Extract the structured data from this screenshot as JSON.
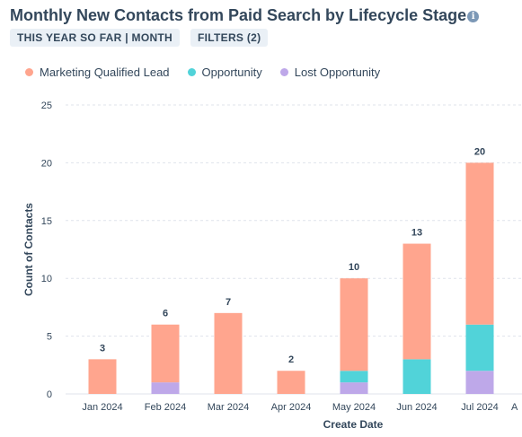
{
  "header": {
    "title": "Monthly New Contacts from Paid Search by Lifecycle Stage",
    "info_icon": "info-icon",
    "chips": [
      "THIS YEAR SO FAR | MONTH",
      "FILTERS (2)"
    ]
  },
  "colors": {
    "mql": "#ffa58e",
    "opportunity": "#51d3d9",
    "lost": "#bea8e9",
    "grid": "#dfe3eb",
    "text": "#33475b"
  },
  "chart_data": {
    "type": "bar",
    "stacked": true,
    "title": "Monthly New Contacts from Paid Search by Lifecycle Stage",
    "xlabel": "Create Date",
    "ylabel": "Count of Contacts",
    "ylim": [
      0,
      25
    ],
    "yticks": [
      0,
      5,
      10,
      15,
      20,
      25
    ],
    "grid": true,
    "legend_position": "top-left",
    "categories": [
      "Jan 2024",
      "Feb 2024",
      "Mar 2024",
      "Apr 2024",
      "May 2024",
      "Jun 2024",
      "Jul 2024"
    ],
    "series": [
      {
        "name": "Lost Opportunity",
        "color": "#bea8e9",
        "values": [
          0,
          1,
          0,
          0,
          1,
          0,
          2
        ]
      },
      {
        "name": "Opportunity",
        "color": "#51d3d9",
        "values": [
          0,
          0,
          0,
          0,
          1,
          3,
          4
        ]
      },
      {
        "name": "Marketing Qualified Lead",
        "color": "#ffa58e",
        "values": [
          3,
          5,
          7,
          2,
          8,
          10,
          14
        ]
      }
    ],
    "legend_order": [
      "Marketing Qualified Lead",
      "Opportunity",
      "Lost Opportunity"
    ],
    "totals": [
      3,
      6,
      7,
      2,
      10,
      13,
      20
    ],
    "partial_next_category": "A"
  }
}
